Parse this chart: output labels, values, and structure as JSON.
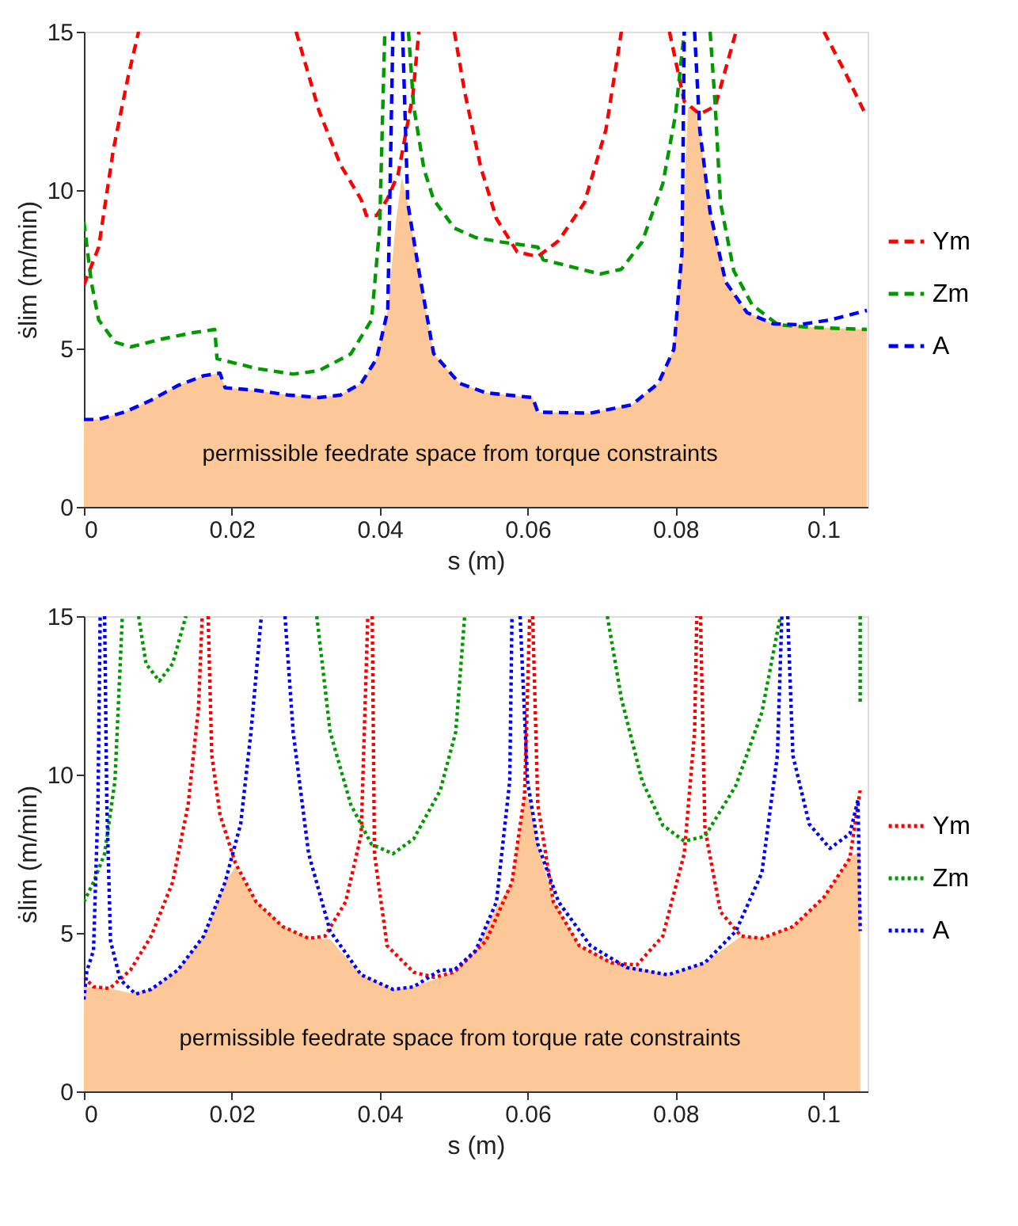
{
  "chart_data": [
    {
      "type": "line",
      "xlabel": "s (m)",
      "ylabel": "ṡlim (m/min)",
      "xlim": [
        0,
        0.106
      ],
      "ylim": [
        0,
        15
      ],
      "xticks": [
        0,
        0.02,
        0.04,
        0.06,
        0.08,
        0.1
      ],
      "yticks": [
        0,
        5,
        10,
        15
      ],
      "grid": false,
      "legend": "right",
      "line_style": "dashed",
      "marker": "none",
      "annotations": [
        "permissible feedrate space from torque constraints"
      ],
      "series": [
        {
          "type": "area",
          "color": "#fdc897",
          "x": [
            0,
            0.002,
            0.0056,
            0.0091,
            0.0127,
            0.0162,
            0.0184,
            0.0191,
            0.0233,
            0.0276,
            0.0318,
            0.0347,
            0.0375,
            0.0396,
            0.0411,
            0.0422,
            0.043,
            0.0438,
            0.0452,
            0.0473,
            0.0508,
            0.0544,
            0.0607,
            0.0614,
            0.0685,
            0.0741,
            0.0777,
            0.0798,
            0.0809,
            0.0817,
            0.0826,
            0.0833,
            0.0847,
            0.0868,
            0.0897,
            0.0932,
            0.0967,
            0.1009,
            0.1059
          ],
          "values": [
            2.76,
            2.76,
            3.0,
            3.37,
            3.83,
            4.14,
            4.22,
            3.76,
            3.68,
            3.53,
            3.45,
            3.53,
            3.9,
            4.68,
            6.2,
            9.0,
            10.4,
            9.6,
            7.6,
            4.84,
            3.9,
            3.6,
            3.45,
            2.99,
            2.96,
            3.22,
            3.9,
            4.98,
            8.05,
            12.6,
            12.65,
            11.9,
            9.3,
            7.1,
            6.13,
            5.78,
            5.7,
            5.65,
            5.6
          ]
        },
        {
          "name": "Ym",
          "color": "#ff0000",
          "x": [
            0,
            0.002,
            0.004,
            0.006,
            0.0074,
            0.02,
            0.0287,
            0.0318,
            0.0347,
            0.0375,
            0.0382,
            0.0396,
            0.041,
            0.0425,
            0.0445,
            0.0453,
            0.048,
            0.0501,
            0.0515,
            0.0537,
            0.0558,
            0.0586,
            0.0614,
            0.0642,
            0.0677,
            0.0706,
            0.0727,
            0.076,
            0.0792,
            0.0812,
            0.0833,
            0.0854,
            0.0882,
            0.095,
            0.1001,
            0.103,
            0.1058
          ],
          "values": [
            7.0,
            8.2,
            11.3,
            13.6,
            15,
            null,
            15,
            12.5,
            10.8,
            9.7,
            9.2,
            9.2,
            9.7,
            10.5,
            13,
            15,
            null,
            15,
            13.1,
            10.7,
            9.1,
            8.05,
            7.9,
            8.4,
            9.6,
            11.9,
            15,
            null,
            15,
            12.8,
            12.4,
            12.65,
            15,
            null,
            15,
            13.7,
            12.35
          ]
        },
        {
          "name": "Zm",
          "color": "#009900",
          "x": [
            0,
            0.001,
            0.002,
            0.0042,
            0.0063,
            0.0106,
            0.0148,
            0.0177,
            0.018,
            0.0233,
            0.0283,
            0.0318,
            0.0361,
            0.0389,
            0.04,
            0.0407,
            0.042,
            0.0439,
            0.0446,
            0.046,
            0.0473,
            0.0501,
            0.053,
            0.0565,
            0.0614,
            0.0621,
            0.0656,
            0.0698,
            0.0727,
            0.0755,
            0.0783,
            0.08,
            0.0812,
            0.083,
            0.0847,
            0.0854,
            0.0861,
            0.0879,
            0.0904,
            0.0939,
            0.0981,
            0.1024,
            0.1059
          ],
          "values": [
            9.0,
            7.1,
            5.9,
            5.2,
            5.05,
            5.3,
            5.5,
            5.6,
            4.68,
            4.37,
            4.19,
            4.3,
            4.83,
            5.9,
            8.8,
            15,
            null,
            15,
            12.65,
            10.66,
            9.7,
            8.8,
            8.5,
            8.36,
            8.2,
            7.8,
            7.6,
            7.35,
            7.5,
            8.36,
            10.2,
            12.35,
            15,
            null,
            15,
            12.65,
            9.6,
            7.45,
            6.37,
            5.75,
            5.67,
            5.63,
            5.6
          ]
        },
        {
          "name": "A",
          "color": "#0000ff",
          "x": [
            0,
            0.002,
            0.0056,
            0.0091,
            0.0127,
            0.0162,
            0.0184,
            0.0191,
            0.0233,
            0.0276,
            0.0318,
            0.0347,
            0.0375,
            0.0396,
            0.0411,
            0.0418,
            0.0425,
            0.0431,
            0.0438,
            0.0452,
            0.0473,
            0.0508,
            0.0544,
            0.0607,
            0.0614,
            0.0685,
            0.0741,
            0.0777,
            0.0798,
            0.0809,
            0.0812,
            0.082,
            0.0826,
            0.0833,
            0.0847,
            0.0868,
            0.0897,
            0.0932,
            0.0967,
            0.1009,
            0.1059
          ],
          "values": [
            2.76,
            2.76,
            3.0,
            3.37,
            3.83,
            4.14,
            4.22,
            3.76,
            3.68,
            3.53,
            3.45,
            3.53,
            3.9,
            4.68,
            6.2,
            15,
            null,
            15,
            9.6,
            7.6,
            4.84,
            3.9,
            3.6,
            3.45,
            2.99,
            2.96,
            3.22,
            3.9,
            4.98,
            8.05,
            15,
            null,
            15,
            11.9,
            9.3,
            7.1,
            6.13,
            5.78,
            5.75,
            5.9,
            6.2
          ]
        }
      ]
    },
    {
      "type": "line",
      "xlabel": "s (m)",
      "ylabel": "ṡlim (m/min)",
      "xlim": [
        0,
        0.106
      ],
      "ylim": [
        0,
        15
      ],
      "xticks": [
        0,
        0.02,
        0.04,
        0.06,
        0.08,
        0.1
      ],
      "yticks": [
        0,
        5,
        10,
        15
      ],
      "grid": false,
      "legend": "right",
      "line_style": "dotted",
      "marker": "none",
      "annotations": [
        "permissible feedrate space from torque rate constraints"
      ],
      "series": [
        {
          "type": "area",
          "color": "#fdc897",
          "x": [
            0,
            0.0035,
            0.0063,
            0.0091,
            0.0127,
            0.0162,
            0.0191,
            0.0205,
            0.0233,
            0.0269,
            0.0304,
            0.0333,
            0.0375,
            0.0418,
            0.0446,
            0.0482,
            0.0501,
            0.053,
            0.0558,
            0.0579,
            0.0596,
            0.0603,
            0.0614,
            0.0635,
            0.067,
            0.0713,
            0.0748,
            0.079,
            0.084,
            0.0889,
            0.0917,
            0.0959,
            0.1001,
            0.1036,
            0.105
          ],
          "values": [
            3.3,
            3.25,
            3.1,
            3.22,
            3.83,
            4.9,
            6.6,
            7.1,
            5.98,
            5.2,
            4.83,
            4.8,
            3.68,
            3.22,
            3.3,
            3.6,
            3.76,
            4.45,
            5.8,
            6.6,
            9.36,
            9.2,
            7.8,
            5.98,
            4.6,
            4.06,
            3.9,
            3.68,
            4.06,
            4.9,
            4.83,
            5.2,
            6.13,
            7.36,
            7.6
          ]
        },
        {
          "name": "Ym",
          "color": "#ff0000",
          "x": [
            0,
            0.0013,
            0.0035,
            0.0063,
            0.0091,
            0.012,
            0.0141,
            0.0155,
            0.016,
            0.0164,
            0.0168,
            0.0173,
            0.0184,
            0.0205,
            0.0233,
            0.0269,
            0.0304,
            0.0326,
            0.0354,
            0.0375,
            0.0384,
            0.0387,
            0.039,
            0.0393,
            0.041,
            0.0446,
            0.0474,
            0.0501,
            0.0544,
            0.0579,
            0.0596,
            0.0603,
            0.0605,
            0.0607,
            0.0614,
            0.0635,
            0.067,
            0.0713,
            0.0748,
            0.0783,
            0.0812,
            0.0826,
            0.0829,
            0.0831,
            0.0834,
            0.084,
            0.0861,
            0.0889,
            0.0917,
            0.0959,
            0.1001,
            0.1036,
            0.105
          ],
          "values": [
            3.6,
            3.3,
            3.25,
            3.83,
            4.9,
            6.6,
            9.05,
            12.1,
            15,
            null,
            15,
            10.6,
            8.74,
            7.2,
            5.98,
            5.2,
            4.83,
            4.9,
            5.98,
            8.1,
            15,
            null,
            15,
            7.5,
            4.6,
            3.76,
            3.6,
            3.76,
            4.75,
            6.6,
            9.36,
            15,
            null,
            15,
            9.05,
            5.98,
            4.6,
            4.06,
            3.99,
            4.9,
            7.5,
            11.35,
            15,
            null,
            15,
            8.28,
            5.67,
            4.9,
            4.83,
            5.2,
            6.13,
            7.36,
            9.5
          ]
        },
        {
          "name": "Zm",
          "color": "#009900",
          "x": [
            0,
            0.0013,
            0.0028,
            0.0042,
            0.0052,
            0.006,
            0.0074,
            0.0084,
            0.0102,
            0.012,
            0.0138,
            0.02,
            0.0315,
            0.0333,
            0.0361,
            0.0389,
            0.0418,
            0.0446,
            0.0482,
            0.0503,
            0.0515,
            0.06,
            0.0708,
            0.0727,
            0.0755,
            0.0783,
            0.0812,
            0.084,
            0.0882,
            0.0917,
            0.0942,
            0.1,
            0.105,
            0.105
          ],
          "values": [
            5.98,
            6.6,
            7.5,
            9.8,
            15,
            null,
            15,
            13.5,
            12.95,
            13.5,
            15,
            null,
            15,
            11.35,
            9.05,
            7.8,
            7.5,
            7.97,
            9.5,
            11.35,
            15,
            null,
            15,
            12.4,
            9.8,
            8.4,
            7.9,
            8.05,
            9.66,
            11.96,
            15,
            null,
            15,
            12.3
          ]
        },
        {
          "name": "A",
          "color": "#0000ff",
          "x": [
            0,
            0.0004,
            0.0013,
            0.0019,
            0.0022,
            0.0025,
            0.0028,
            0.0031,
            0.0036,
            0.0049,
            0.007,
            0.0091,
            0.0127,
            0.0162,
            0.0191,
            0.0212,
            0.0226,
            0.024,
            0.0255,
            0.0272,
            0.0283,
            0.0304,
            0.0333,
            0.0375,
            0.0418,
            0.0446,
            0.0482,
            0.0501,
            0.053,
            0.0558,
            0.0576,
            0.0579,
            0.0585,
            0.059,
            0.06,
            0.0614,
            0.0642,
            0.0685,
            0.0734,
            0.079,
            0.084,
            0.0882,
            0.0917,
            0.0938,
            0.0944,
            0.0948,
            0.0952,
            0.0959,
            0.0981,
            0.1009,
            0.1036,
            0.1047,
            0.105
          ],
          "values": [
            2.9,
            3.8,
            4.45,
            9.05,
            15,
            null,
            15,
            9.05,
            4.75,
            3.53,
            3.07,
            3.22,
            3.83,
            4.9,
            6.6,
            8.44,
            11.35,
            15,
            null,
            15,
            11.35,
            7.5,
            5.06,
            3.68,
            3.22,
            3.3,
            3.83,
            3.83,
            4.45,
            5.98,
            9.8,
            15,
            null,
            15,
            9.8,
            7.8,
            5.98,
            4.6,
            3.91,
            3.68,
            4.06,
            5.06,
            6.9,
            10.6,
            15,
            null,
            15,
            10.6,
            8.44,
            7.67,
            8.13,
            9.2,
            5.06
          ]
        }
      ]
    }
  ]
}
